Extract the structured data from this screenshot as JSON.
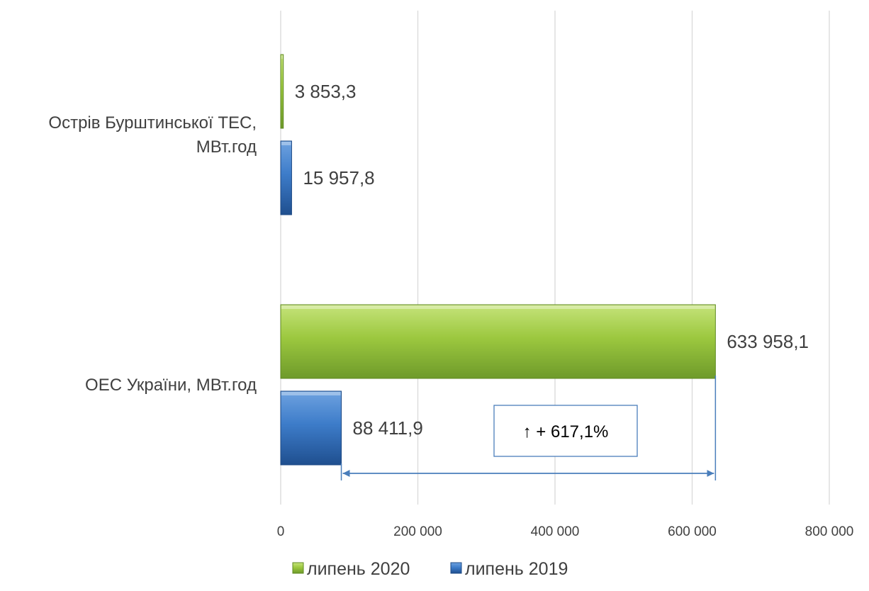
{
  "chart_data": {
    "type": "bar",
    "orientation": "horizontal",
    "title": "",
    "xlabel": "",
    "ylabel": "",
    "categories": [
      "Острів Бурштинської ТЕС, МВт.год",
      "ОЕС України, МВт.год"
    ],
    "category_lines": [
      [
        "Острів Бурштинської ТЕС,",
        "МВт.год"
      ],
      [
        "ОЕС України, МВт.год"
      ]
    ],
    "series": [
      {
        "name": "липень 2020",
        "values": [
          3853.3,
          633958.1
        ],
        "labels": [
          "3 853,3",
          "633 958,1"
        ],
        "color": "#92C13E"
      },
      {
        "name": "липень 2019",
        "values": [
          15957.8,
          88411.9
        ],
        "labels": [
          "15 957,8",
          "88 411,9"
        ],
        "color": "#2E6DB4"
      }
    ],
    "xlim": [
      0,
      800000
    ],
    "x_ticks": [
      0,
      200000,
      400000,
      600000,
      800000
    ],
    "x_tick_labels": [
      "0",
      "200 000",
      "400 000",
      "600 000",
      "800 000"
    ],
    "grid": "vertical",
    "legend": "bottom",
    "annotation": {
      "text": "↑ + 617,1%",
      "from_value": 88411.9,
      "to_value": 633958.1,
      "color": "#4A7EBB"
    }
  }
}
